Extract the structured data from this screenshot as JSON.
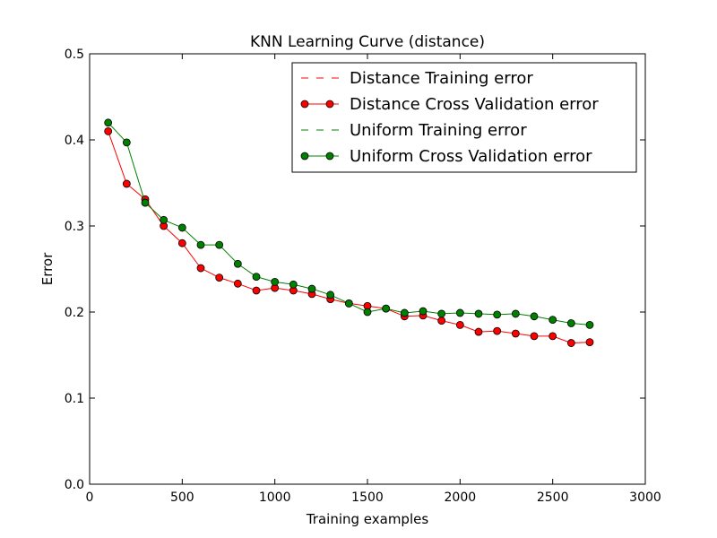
{
  "chart_data": {
    "type": "line",
    "title": "KNN Learning Curve (distance)",
    "xlabel": "Training examples",
    "ylabel": "Error",
    "xlim": [
      0,
      3000
    ],
    "ylim": [
      0.0,
      0.5
    ],
    "xticks": [
      0,
      500,
      1000,
      1500,
      2000,
      2500,
      3000
    ],
    "xtick_labels": [
      "0",
      "500",
      "1000",
      "1500",
      "2000",
      "2500",
      "3000"
    ],
    "yticks": [
      0.0,
      0.1,
      0.2,
      0.3,
      0.4,
      0.5
    ],
    "ytick_labels": [
      "0.0",
      "0.1",
      "0.2",
      "0.3",
      "0.4",
      "0.5"
    ],
    "grid": false,
    "legend_position": "top-right",
    "x": [
      100,
      200,
      300,
      400,
      500,
      600,
      700,
      800,
      900,
      1000,
      1100,
      1200,
      1300,
      1400,
      1500,
      1600,
      1700,
      1800,
      1900,
      2000,
      2100,
      2200,
      2300,
      2400,
      2500,
      2600,
      2700
    ],
    "series": [
      {
        "name": "Distance Training error",
        "color": "#ff0000",
        "style": "dashed",
        "marker": "none",
        "values": [
          0,
          0,
          0,
          0,
          0,
          0,
          0,
          0,
          0,
          0,
          0,
          0,
          0,
          0,
          0,
          0,
          0,
          0,
          0,
          0,
          0,
          0,
          0,
          0,
          0,
          0,
          0
        ]
      },
      {
        "name": "Distance Cross Validation error",
        "color": "#ff0000",
        "style": "solid",
        "marker": "circle",
        "values": [
          0.41,
          0.349,
          0.331,
          0.3,
          0.28,
          0.251,
          0.24,
          0.233,
          0.225,
          0.228,
          0.225,
          0.221,
          0.215,
          0.21,
          0.207,
          0.204,
          0.195,
          0.196,
          0.19,
          0.185,
          0.177,
          0.178,
          0.175,
          0.172,
          0.172,
          0.164,
          0.165
        ]
      },
      {
        "name": "Uniform Training error",
        "color": "#008000",
        "style": "dashed",
        "marker": "none",
        "values": [
          0,
          0,
          0,
          0,
          0,
          0,
          0,
          0,
          0,
          0,
          0,
          0,
          0,
          0,
          0,
          0,
          0,
          0,
          0,
          0,
          0,
          0,
          0,
          0,
          0,
          0,
          0
        ]
      },
      {
        "name": "Uniform Cross Validation error",
        "color": "#008000",
        "style": "solid",
        "marker": "circle",
        "values": [
          0.42,
          0.397,
          0.327,
          0.307,
          0.298,
          0.278,
          0.278,
          0.256,
          0.241,
          0.235,
          0.232,
          0.227,
          0.22,
          0.21,
          0.2,
          0.204,
          0.199,
          0.201,
          0.198,
          0.199,
          0.198,
          0.197,
          0.198,
          0.195,
          0.191,
          0.187,
          0.185
        ]
      }
    ]
  }
}
